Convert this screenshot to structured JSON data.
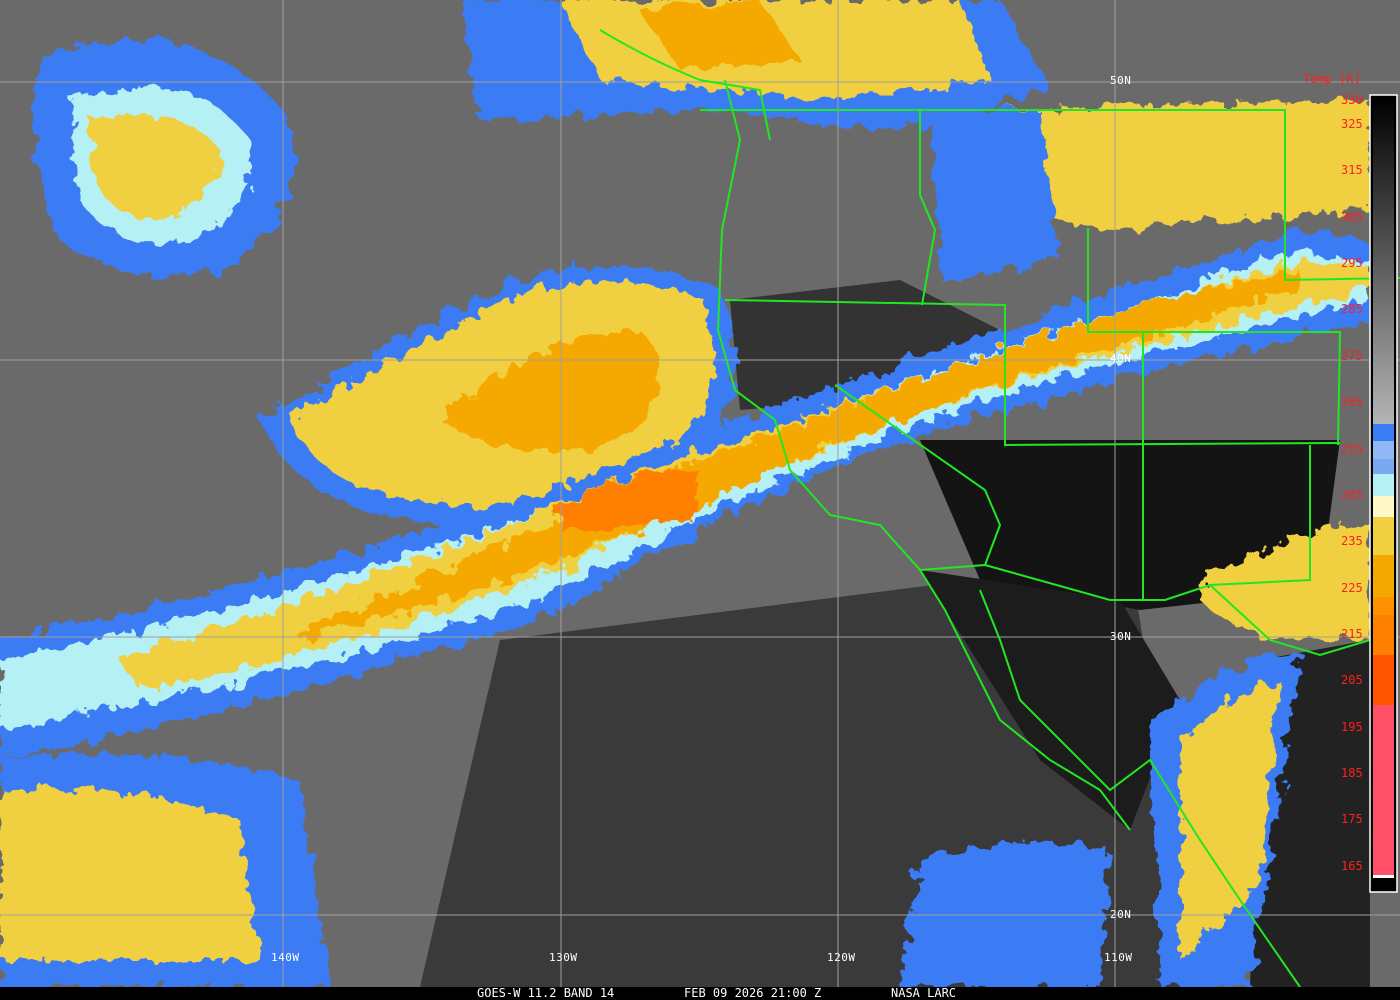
{
  "caption": {
    "source": "GOES-W 11.2 BAND 14",
    "datetime": "FEB 09 2026 21:00 Z",
    "credit": "NASA LARC"
  },
  "grid_labels": {
    "lon": [
      "140W",
      "130W",
      "120W",
      "110W"
    ],
    "lat": [
      "50N",
      "40N",
      "30N",
      "20N"
    ]
  },
  "colorbar": {
    "title": "Temp [K]",
    "ticks": [
      "330",
      "325",
      "315",
      "305",
      "295",
      "285",
      "275",
      "265",
      "255",
      "245",
      "235",
      "225",
      "215",
      "205",
      "195",
      "185",
      "175",
      "165"
    ],
    "colors": {
      "warm_gray_top": "#000000",
      "warm_gray_bottom": "#b4b4b4",
      "blue": "#3a7cf5",
      "light_blue": "#8fb8f5",
      "cyan": "#b5f0f5",
      "pale_yellow": "#fff8c8",
      "yellow": "#f0d040",
      "gold": "#f5a800",
      "orange": "#ff7f00",
      "dark_orange": "#ff5500",
      "pink": "#ff5068"
    }
  },
  "colors": {
    "boundaries": "#22e622",
    "grid": "#a0a0a0",
    "label": "#ff2020"
  }
}
